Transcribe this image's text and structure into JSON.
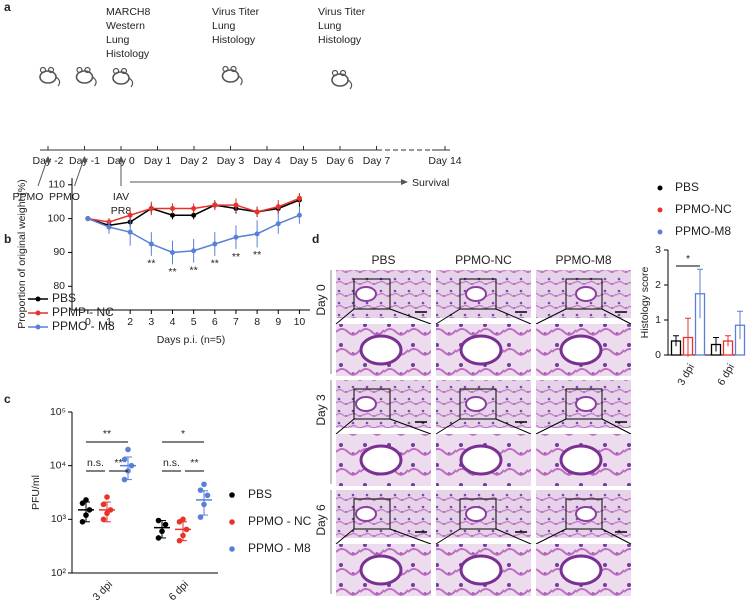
{
  "panel_labels": [
    "a",
    "b",
    "c",
    "d"
  ],
  "timeline": {
    "days": [
      "Day -2",
      "Day -1",
      "Day 0",
      "Day 1",
      "Day 2",
      "Day 3",
      "Day 4",
      "Day 5",
      "Day 6",
      "Day 7",
      "Day 14"
    ],
    "events": [
      [
        "MARCH8",
        "Western",
        "Lung",
        "Histology"
      ],
      [
        "Virus Titer",
        "Lung",
        "Histology"
      ],
      [
        "Virus Titer",
        "Lung",
        "Histology"
      ]
    ],
    "treatments": [
      [
        "PPMO"
      ],
      [
        "PPMO"
      ],
      [
        "IAV",
        "PR8"
      ]
    ],
    "outcome": "Survival"
  },
  "histology": {
    "columns": [
      "PBS",
      "PPMO-NC",
      "PPMO-M8"
    ],
    "rows": [
      "Day 0",
      "Day 3",
      "Day 6"
    ]
  },
  "chart_data": [
    {
      "type": "line",
      "xlabel": "Days p.i. (n=5)",
      "ylabel": "Proportion of original weight (%)",
      "x": [
        0,
        1,
        2,
        3,
        4,
        5,
        6,
        7,
        8,
        9,
        10
      ],
      "xlim": [
        -0.75,
        10.5
      ],
      "ylim": [
        73,
        112
      ],
      "xticks": [
        0,
        1,
        2,
        3,
        4,
        5,
        6,
        7,
        8,
        9,
        10
      ],
      "yticks": [
        80,
        90,
        100,
        110
      ],
      "legend": "lower left",
      "series": [
        {
          "name": "PBS",
          "color": "#000000",
          "values": [
            100,
            98,
            99,
            103,
            101,
            101,
            104,
            103,
            102,
            103,
            105.5
          ],
          "errors": [
            0.3,
            1,
            1.5,
            1.5,
            1.2,
            1.2,
            1.2,
            1.5,
            1.5,
            1.5,
            2
          ]
        },
        {
          "name": "PPMP - NC",
          "color": "#e8322b",
          "values": [
            100,
            99,
            101,
            103,
            103,
            103,
            104,
            104,
            102,
            103.5,
            106
          ],
          "errors": [
            0.3,
            1.2,
            1.5,
            2,
            1.5,
            1.5,
            1.5,
            2,
            1.5,
            2,
            1.5
          ]
        },
        {
          "name": "PPMO - M8",
          "color": "#5a7fd8",
          "values": [
            100,
            97.5,
            96,
            92.5,
            90,
            90.5,
            92.5,
            94.5,
            95.5,
            98.5,
            101
          ],
          "errors": [
            0.5,
            2,
            4,
            3.5,
            3.5,
            3.5,
            3.5,
            3.5,
            4,
            3,
            2.5
          ]
        }
      ],
      "significance": {
        "x": [
          3,
          4,
          5,
          6,
          7,
          8
        ],
        "label": "**"
      }
    },
    {
      "type": "scatter",
      "ylabel": "PFU/ml",
      "log_scale": true,
      "categories": [
        "3 dpi",
        "6 dpi"
      ],
      "ylim": [
        100,
        100000
      ],
      "yticks": [
        {
          "value": 100,
          "label": "10²"
        },
        {
          "value": 1000,
          "label": "10³"
        },
        {
          "value": 10000,
          "label": "10⁴"
        },
        {
          "value": 100000,
          "label": "10⁵"
        }
      ],
      "series": [
        {
          "name": "PBS",
          "color": "#000000",
          "values": [
            [
              900,
              1200,
              1500,
              2000,
              2300
            ],
            [
              450,
              600,
              800,
              950
            ]
          ],
          "means": [
            1500,
            700
          ],
          "errors": [
            600,
            250
          ]
        },
        {
          "name": "PPMO - NC",
          "color": "#e8322b",
          "values": [
            [
              1000,
              1300,
              1500,
              1900,
              2600
            ],
            [
              400,
              500,
              650,
              900,
              1000
            ]
          ],
          "means": [
            1500,
            650
          ],
          "errors": [
            600,
            250
          ]
        },
        {
          "name": "PPMO - M8",
          "color": "#5a7fd8",
          "values": [
            [
              5500,
              8000,
              10000,
              13000,
              20000
            ],
            [
              1100,
              1900,
              2800,
              3500,
              4500
            ]
          ],
          "means": [
            10000,
            2300
          ],
          "errors": [
            4500,
            1100
          ]
        }
      ],
      "comparisons": [
        [
          "**",
          "n.s.",
          "**"
        ],
        [
          "*",
          "n.s.",
          "**"
        ]
      ]
    },
    {
      "type": "bar",
      "ylabel": "Histology score",
      "categories": [
        "3 dpi",
        "6 dpi"
      ],
      "ylim": [
        0,
        3
      ],
      "yticks": [
        0,
        1,
        2,
        3
      ],
      "series": [
        {
          "name": "PBS",
          "color": "#000000",
          "values": [
            0.4,
            0.3
          ],
          "errors": [
            0.15,
            0.2
          ]
        },
        {
          "name": "PPMO-NC",
          "color": "#e8322b",
          "values": [
            0.5,
            0.4
          ],
          "errors": [
            0.55,
            0.15
          ]
        },
        {
          "name": "PPMO-M8",
          "color": "#5a7fd8",
          "values": [
            1.75,
            0.85
          ],
          "errors": [
            0.7,
            0.4
          ]
        }
      ],
      "significance": "*"
    }
  ]
}
